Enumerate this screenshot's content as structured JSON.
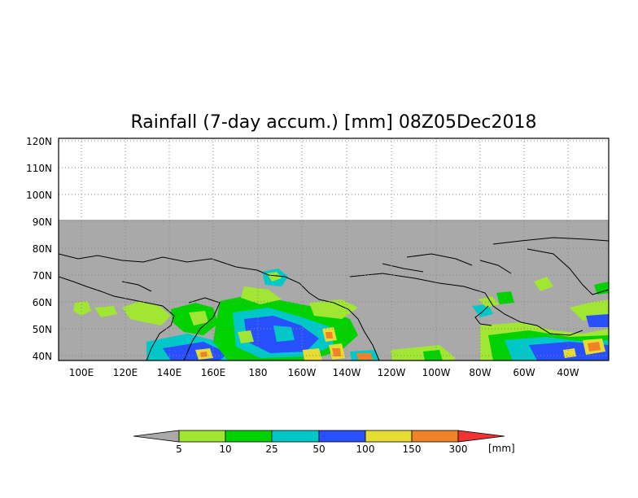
{
  "title": "Rainfall (7-day accum.) [mm] 08Z05Dec2018",
  "map": {
    "lat_labels": [
      "120N",
      "110N",
      "100N",
      "90N",
      "80N",
      "70N",
      "60N",
      "50N",
      "40N"
    ],
    "lon_labels": [
      "100E",
      "120E",
      "140E",
      "160E",
      "180",
      "160W",
      "140W",
      "120W",
      "100W",
      "80W",
      "60W",
      "40W"
    ],
    "no_data_color": "#a9a9a9",
    "coastline_color": "#000000",
    "grid": "dotted"
  },
  "colorbar": {
    "ticks": [
      "5",
      "10",
      "25",
      "50",
      "100",
      "150",
      "300"
    ],
    "unit": "[mm]",
    "colors": [
      "#a9a9a9",
      "#a0e632",
      "#00d200",
      "#00c8c8",
      "#2850ff",
      "#e6dc32",
      "#f08228",
      "#f03232"
    ]
  }
}
